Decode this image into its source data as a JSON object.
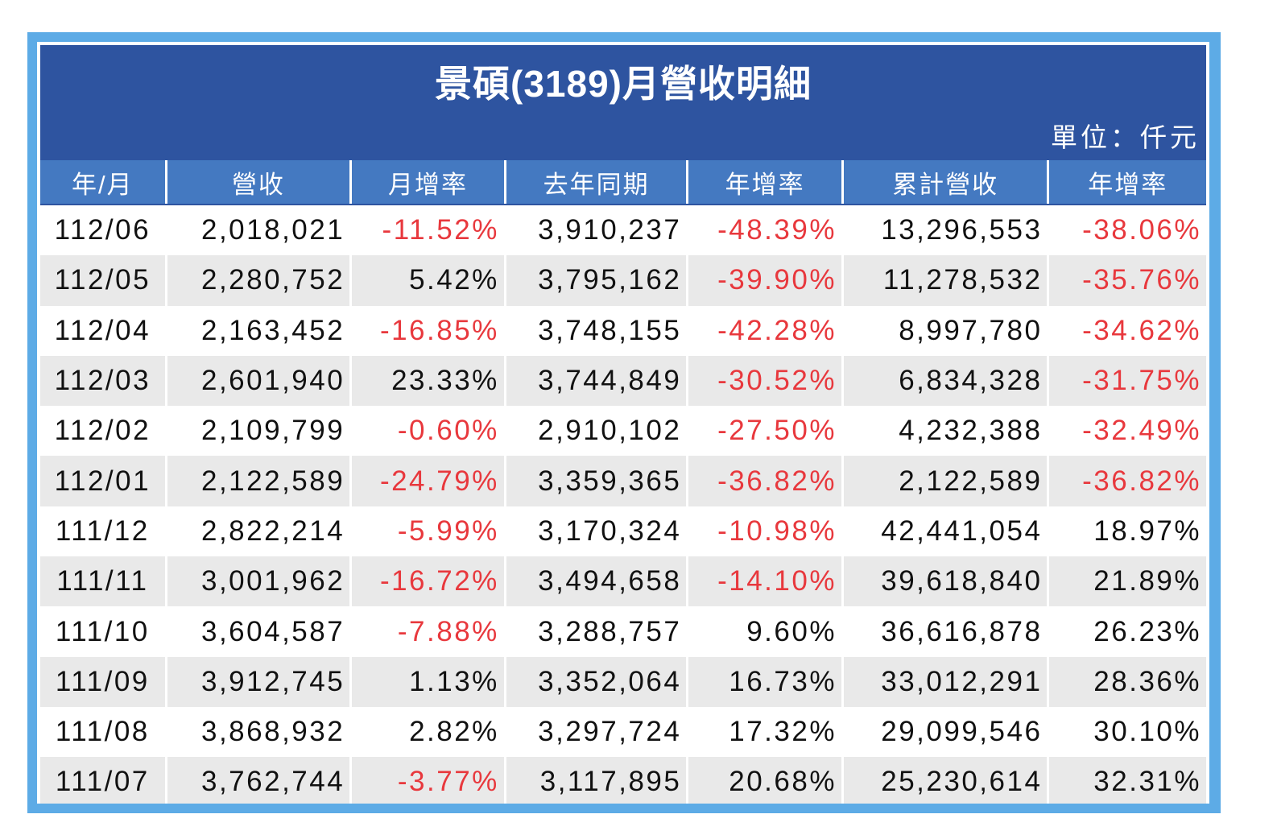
{
  "title": "景碩(3189)月營收明細",
  "unit": "單位：仟元",
  "colors": {
    "header_bg": "#2e54a0",
    "column_header_bg": "#4479c1",
    "frame": "#5dabe6",
    "negative": "#e8383d"
  },
  "chart_data": {
    "type": "table",
    "title": "景碩(3189)月營收明細",
    "columns": [
      "年/月",
      "營收",
      "月增率",
      "去年同期",
      "年增率",
      "累計營收",
      "年增率"
    ],
    "rows": [
      [
        "112/06",
        "2,018,021",
        "-11.52%",
        "3,910,237",
        "-48.39%",
        "13,296,553",
        "-38.06%"
      ],
      [
        "112/05",
        "2,280,752",
        "5.42%",
        "3,795,162",
        "-39.90%",
        "11,278,532",
        "-35.76%"
      ],
      [
        "112/04",
        "2,163,452",
        "-16.85%",
        "3,748,155",
        "-42.28%",
        "8,997,780",
        "-34.62%"
      ],
      [
        "112/03",
        "2,601,940",
        "23.33%",
        "3,744,849",
        "-30.52%",
        "6,834,328",
        "-31.75%"
      ],
      [
        "112/02",
        "2,109,799",
        "-0.60%",
        "2,910,102",
        "-27.50%",
        "4,232,388",
        "-32.49%"
      ],
      [
        "112/01",
        "2,122,589",
        "-24.79%",
        "3,359,365",
        "-36.82%",
        "2,122,589",
        "-36.82%"
      ],
      [
        "111/12",
        "2,822,214",
        "-5.99%",
        "3,170,324",
        "-10.98%",
        "42,441,054",
        "18.97%"
      ],
      [
        "111/11",
        "3,001,962",
        "-16.72%",
        "3,494,658",
        "-14.10%",
        "39,618,840",
        "21.89%"
      ],
      [
        "111/10",
        "3,604,587",
        "-7.88%",
        "3,288,757",
        "9.60%",
        "36,616,878",
        "26.23%"
      ],
      [
        "111/09",
        "3,912,745",
        "1.13%",
        "3,352,064",
        "16.73%",
        "33,012,291",
        "28.36%"
      ],
      [
        "111/08",
        "3,868,932",
        "2.82%",
        "3,297,724",
        "17.32%",
        "29,099,546",
        "30.10%"
      ],
      [
        "111/07",
        "3,762,744",
        "-3.77%",
        "3,117,895",
        "20.68%",
        "25,230,614",
        "32.31%"
      ]
    ]
  }
}
